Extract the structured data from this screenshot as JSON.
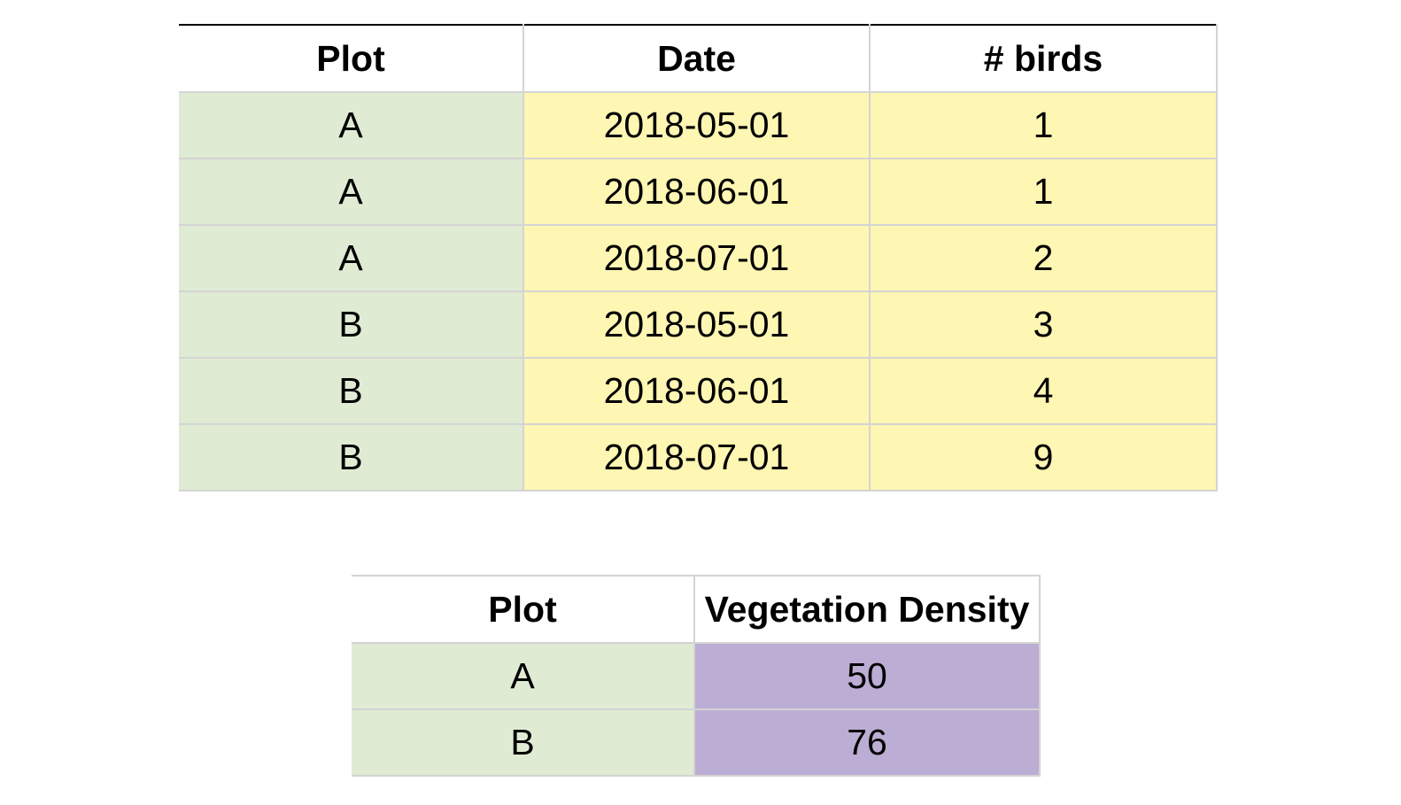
{
  "colors": {
    "plot_column_bg": "#dfebd3",
    "measurement_bg": "#fef6b3",
    "vegetation_bg": "#bcadd4",
    "header_top_rule": "#000000",
    "grid_line": "#d4d4d4"
  },
  "bird_table": {
    "headers": [
      "Plot",
      "Date",
      "# birds"
    ],
    "rows": [
      [
        "A",
        "2018-05-01",
        "1"
      ],
      [
        "A",
        "2018-06-01",
        "1"
      ],
      [
        "A",
        "2018-07-01",
        "2"
      ],
      [
        "B",
        "2018-05-01",
        "3"
      ],
      [
        "B",
        "2018-06-01",
        "4"
      ],
      [
        "B",
        "2018-07-01",
        "9"
      ]
    ]
  },
  "vegetation_table": {
    "headers": [
      "Plot",
      "Vegetation Density"
    ],
    "rows": [
      [
        "A",
        "50"
      ],
      [
        "B",
        "76"
      ]
    ]
  }
}
